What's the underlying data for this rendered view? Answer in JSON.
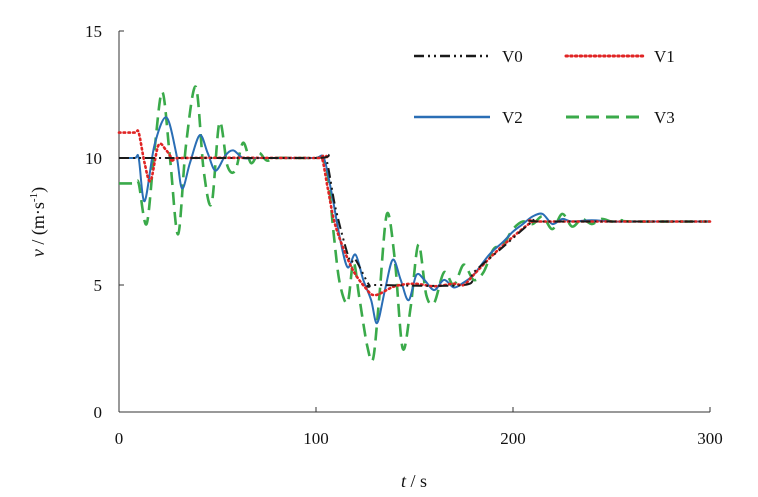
{
  "chart_data": {
    "type": "line",
    "title": "",
    "xlabel": {
      "var": "t",
      "unit": " / s"
    },
    "ylabel": {
      "var": "v",
      "unit_pre": " / (m·s",
      "unit_sup": "-1",
      "unit_post": ")"
    },
    "xlim": [
      0,
      300
    ],
    "ylim": [
      0,
      15
    ],
    "xticks": [
      0,
      100,
      200,
      300
    ],
    "yticks": [
      0,
      5,
      10,
      15
    ],
    "grid": false,
    "legend": {
      "placement": "top-right",
      "columns": 2
    },
    "series": [
      {
        "name": "V0",
        "color": "#1a1a1a",
        "dash": "dashdotdot",
        "x": [
          0,
          10,
          12,
          15,
          25,
          30,
          100,
          105,
          110,
          117,
          120,
          127,
          130,
          175,
          180,
          195,
          210,
          215,
          300
        ],
        "y": [
          10,
          10,
          10,
          10,
          10,
          10,
          10,
          10,
          8,
          6,
          6,
          5,
          5,
          5,
          5.5,
          6.5,
          7.5,
          7.5,
          7.5
        ]
      },
      {
        "name": "V1",
        "color": "#e02424",
        "dash": "dotted",
        "x": [
          0,
          8,
          10,
          13,
          16,
          20,
          24,
          28,
          32,
          100,
          103,
          106,
          110,
          118,
          125,
          130,
          140,
          150,
          160,
          170,
          175,
          180,
          190,
          200,
          210,
          215,
          300
        ],
        "y": [
          11,
          11,
          11,
          9.8,
          9.1,
          10.5,
          10.3,
          9.9,
          10,
          10,
          10,
          8.8,
          7.3,
          5.7,
          4.9,
          4.6,
          4.95,
          5.05,
          4.95,
          5.05,
          5,
          5.4,
          6.2,
          6.9,
          7.5,
          7.5,
          7.5
        ]
      },
      {
        "name": "V2",
        "color": "#2a6eb5",
        "dash": "solid",
        "x": [
          0,
          8,
          10,
          13,
          18,
          24,
          29,
          32,
          36,
          41,
          45,
          49,
          54,
          58,
          63,
          70,
          80,
          90,
          100,
          104,
          108,
          112,
          116,
          120,
          124,
          128,
          131,
          135,
          139,
          143,
          147,
          151,
          155,
          160,
          165,
          170,
          175,
          180,
          188,
          195,
          200,
          205,
          210,
          215,
          220,
          225,
          230,
          240,
          250,
          260,
          300
        ],
        "y": [
          10,
          10,
          10,
          8.3,
          10.5,
          11.6,
          10.2,
          8.8,
          9.8,
          10.9,
          10.2,
          9.5,
          10.1,
          10.3,
          10,
          10,
          10,
          10,
          10,
          10,
          8.6,
          6.9,
          5.7,
          6.2,
          5.2,
          4.4,
          3.5,
          4.8,
          6,
          5.2,
          4.4,
          5.4,
          5.2,
          4.8,
          5.2,
          4.9,
          5.1,
          5.4,
          6.2,
          6.7,
          7.1,
          7.4,
          7.7,
          7.8,
          7.4,
          7.6,
          7.5,
          7.55,
          7.5,
          7.5,
          7.5
        ]
      },
      {
        "name": "V3",
        "color": "#3aaa4a",
        "dash": "dashed",
        "x": [
          0,
          8,
          10,
          14,
          18,
          22,
          26,
          30,
          34,
          39,
          43,
          47,
          51,
          55,
          59,
          63,
          67,
          71,
          75,
          80,
          90,
          100,
          103,
          106,
          109,
          112,
          116,
          119,
          122,
          126,
          129,
          132,
          136,
          140,
          144,
          148,
          152,
          156,
          160,
          165,
          170,
          175,
          180,
          185,
          190,
          195,
          200,
          205,
          210,
          215,
          220,
          225,
          230,
          235,
          240,
          245,
          250,
          255,
          260,
          300
        ],
        "y": [
          9,
          9,
          9,
          7.4,
          10.3,
          12.6,
          9.9,
          7,
          10.5,
          12.8,
          9.5,
          8.2,
          11.4,
          9.7,
          9.5,
          10.6,
          9.8,
          10.2,
          9.9,
          10,
          10,
          10,
          10,
          9.3,
          7,
          5.1,
          4.3,
          5.9,
          4.5,
          2.6,
          2.1,
          4.4,
          7.8,
          6,
          2.5,
          4.1,
          6.6,
          4.6,
          4.3,
          5.5,
          5,
          5.8,
          5.2,
          5.5,
          6.4,
          6.6,
          7.2,
          7.5,
          7.4,
          7.7,
          7.2,
          7.8,
          7.3,
          7.6,
          7.4,
          7.6,
          7.5,
          7.55,
          7.5,
          7.5
        ]
      }
    ]
  }
}
